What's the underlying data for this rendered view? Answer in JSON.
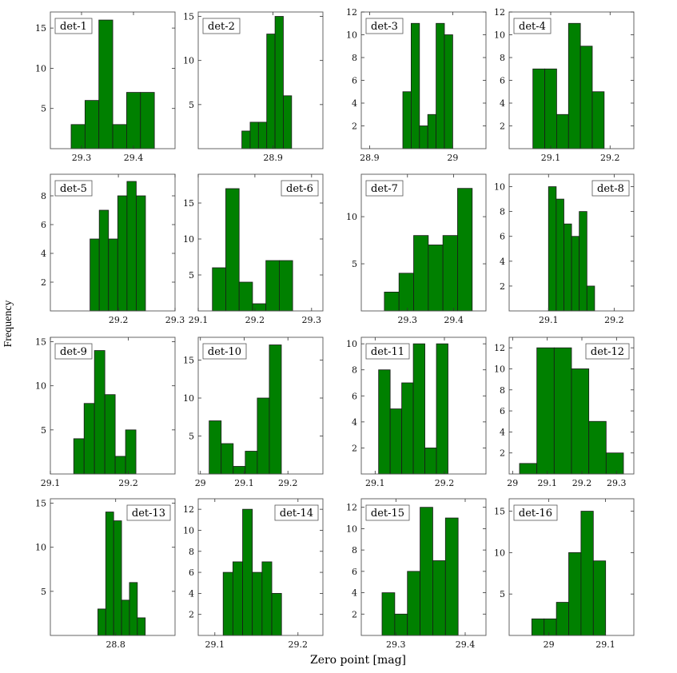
{
  "figure": {
    "ylabel": "Frequency",
    "xlabel": "Zero point [mag]",
    "bar_color": "#008000",
    "bar_edge": "#1a1a1a"
  },
  "chart_data": [
    {
      "type": "bar",
      "label": "det-1",
      "label_pos": "top-left",
      "bin_start": 29.28,
      "bin_width": 0.0267,
      "values": [
        3,
        6,
        16,
        3,
        7,
        7
      ],
      "xlim": [
        29.24,
        29.48
      ],
      "ylim": [
        0,
        17
      ],
      "xticks": [
        29.3,
        29.4
      ],
      "yticks": [
        5,
        10,
        15
      ]
    },
    {
      "type": "bar",
      "label": "det-5",
      "label_pos": "top-left",
      "bin_start": 29.15,
      "bin_width": 0.0163,
      "values": [
        5,
        7,
        5,
        8,
        9,
        8
      ],
      "xlim": [
        29.08,
        29.3
      ],
      "ylim": [
        0,
        9.5
      ],
      "xticks": [
        29.2,
        29.3
      ],
      "yticks": [
        2,
        4,
        6,
        8
      ]
    },
    {
      "type": "bar",
      "label": "det-9",
      "label_pos": "top-left",
      "bin_start": 29.13,
      "bin_width": 0.0133,
      "values": [
        4,
        8,
        14,
        9,
        2,
        5
      ],
      "xlim": [
        29.1,
        29.26
      ],
      "ylim": [
        0,
        15.5
      ],
      "xticks": [
        29.1,
        29.2
      ],
      "yticks": [
        5,
        10,
        15
      ]
    },
    {
      "type": "bar",
      "label": "det-13",
      "label_pos": "top-right",
      "bin_start": 28.77,
      "bin_width": 0.0133,
      "values": [
        3,
        14,
        13,
        4,
        6,
        2
      ],
      "xlim": [
        28.69,
        28.9
      ],
      "ylim": [
        0,
        15.5
      ],
      "xticks": [
        28.8
      ],
      "yticks": [
        5,
        10,
        15
      ]
    },
    {
      "type": "bar",
      "label": "det-2",
      "label_pos": "top-left",
      "bin_start": 28.85,
      "bin_width": 0.0133,
      "values": [
        2,
        3,
        3,
        13,
        15,
        6
      ],
      "xlim": [
        28.78,
        28.98
      ],
      "ylim": [
        0,
        15.5
      ],
      "xticks": [
        28.9
      ],
      "yticks": [
        5,
        10,
        15
      ]
    },
    {
      "type": "bar",
      "label": "det-6",
      "label_pos": "top-right",
      "bin_start": 29.125,
      "bin_width": 0.0236,
      "values": [
        6,
        17,
        4,
        1,
        7,
        7
      ],
      "xlim": [
        29.1,
        29.32
      ],
      "ylim": [
        0,
        19
      ],
      "xticks": [
        29.1,
        29.2,
        29.3
      ],
      "yticks": [
        5,
        10,
        15
      ]
    },
    {
      "type": "bar",
      "label": "det-10",
      "label_pos": "top-left",
      "bin_start": 29.02,
      "bin_width": 0.0275,
      "values": [
        7,
        4,
        1,
        3,
        10,
        17
      ],
      "xlim": [
        28.995,
        29.28
      ],
      "ylim": [
        0,
        18
      ],
      "xticks": [
        29.0,
        29.1,
        29.2
      ],
      "yticks": [
        5,
        10,
        15
      ]
    },
    {
      "type": "bar",
      "label": "det-14",
      "label_pos": "top-right",
      "bin_start": 29.11,
      "bin_width": 0.0117,
      "values": [
        6,
        7,
        12,
        6,
        7,
        4
      ],
      "xlim": [
        29.08,
        29.23
      ],
      "ylim": [
        0,
        13
      ],
      "xticks": [
        29.1,
        29.2
      ],
      "yticks": [
        2,
        4,
        6,
        8,
        10,
        12
      ]
    },
    {
      "type": "bar",
      "label": "det-3",
      "label_pos": "top-left",
      "bin_start": 28.94,
      "bin_width": 0.01,
      "values": [
        5,
        11,
        2,
        3,
        11,
        10
      ],
      "xlim": [
        28.89,
        29.04
      ],
      "ylim": [
        0,
        12
      ],
      "xticks": [
        28.9,
        29.0
      ],
      "yticks": [
        2,
        4,
        6,
        8,
        10,
        12
      ]
    },
    {
      "type": "bar",
      "label": "det-7",
      "label_pos": "top-left",
      "bin_start": 29.25,
      "bin_width": 0.0317,
      "values": [
        2,
        4,
        8,
        7,
        8,
        13
      ],
      "xlim": [
        29.2,
        29.47
      ],
      "ylim": [
        0,
        14.5
      ],
      "xticks": [
        29.3,
        29.4
      ],
      "yticks": [
        5,
        10
      ]
    },
    {
      "type": "bar",
      "label": "det-11",
      "label_pos": "top-left",
      "bin_start": 29.105,
      "bin_width": 0.0167,
      "values": [
        8,
        5,
        7,
        10,
        2,
        10
      ],
      "xlim": [
        29.08,
        29.26
      ],
      "ylim": [
        0,
        10.5
      ],
      "xticks": [
        29.1,
        29.2
      ],
      "yticks": [
        2,
        4,
        6,
        8,
        10
      ]
    },
    {
      "type": "bar",
      "label": "det-15",
      "label_pos": "top-left",
      "bin_start": 29.28,
      "bin_width": 0.0183,
      "values": [
        4,
        2,
        6,
        12,
        7,
        11
      ],
      "xlim": [
        29.25,
        29.43
      ],
      "ylim": [
        0,
        12.8
      ],
      "xticks": [
        29.3,
        29.4
      ],
      "yticks": [
        2,
        4,
        6,
        8,
        10,
        12
      ]
    },
    {
      "type": "bar",
      "label": "det-4",
      "label_pos": "top-left",
      "bin_start": 29.07,
      "bin_width": 0.02,
      "values": [
        7,
        7,
        3,
        11,
        9,
        5
      ],
      "xlim": [
        29.03,
        29.24
      ],
      "ylim": [
        0,
        12
      ],
      "xticks": [
        29.1,
        29.2
      ],
      "yticks": [
        2,
        4,
        6,
        8,
        10,
        12
      ]
    },
    {
      "type": "bar",
      "label": "det-8",
      "label_pos": "top-right",
      "bin_start": 29.1,
      "bin_width": 0.0117,
      "values": [
        10,
        9,
        7,
        6,
        8,
        2
      ],
      "xlim": [
        29.04,
        29.23
      ],
      "ylim": [
        0,
        11
      ],
      "xticks": [
        29.1,
        29.2
      ],
      "yticks": [
        2,
        4,
        6,
        8,
        10
      ]
    },
    {
      "type": "bar",
      "label": "det-12",
      "label_pos": "top-right",
      "bin_start": 29.02,
      "bin_width": 0.05,
      "values": [
        1,
        12,
        12,
        10,
        5,
        2
      ],
      "xlim": [
        28.99,
        29.35
      ],
      "ylim": [
        0,
        13
      ],
      "xticks": [
        29.0,
        29.1,
        29.2,
        29.3
      ],
      "yticks": [
        2,
        4,
        6,
        8,
        10,
        12
      ]
    },
    {
      "type": "bar",
      "label": "det-16",
      "label_pos": "top-left",
      "bin_start": 28.97,
      "bin_width": 0.0217,
      "values": [
        2,
        2,
        4,
        10,
        15,
        9
      ],
      "xlim": [
        28.93,
        29.15
      ],
      "ylim": [
        0,
        16.5
      ],
      "xticks": [
        29.0,
        29.1
      ],
      "yticks": [
        5,
        10,
        15
      ]
    }
  ]
}
